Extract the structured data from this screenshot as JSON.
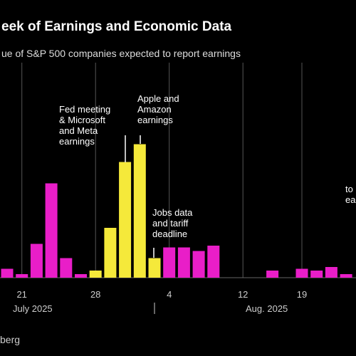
{
  "chart_data": {
    "type": "bar",
    "title": "eek of Earnings and Economic Data",
    "subtitle": "ue of S&P 500 companies expected to report earnings",
    "categories": [
      null,
      "21",
      null,
      null,
      null,
      null,
      "28",
      null,
      null,
      null,
      null,
      "4",
      null,
      null,
      null,
      null,
      "12",
      null,
      null,
      null,
      "19",
      null,
      null,
      null
    ],
    "values": [
      0.5,
      0.2,
      1.9,
      5.3,
      1.1,
      0.2,
      0.4,
      2.8,
      6.5,
      7.5,
      1.1,
      1.7,
      1.7,
      1.5,
      1.8,
      0,
      0,
      0,
      0.4,
      0,
      0.5,
      0.4,
      0.6,
      0.2
    ],
    "colors": [
      "#e91ec8",
      "#e91ec8",
      "#e91ec8",
      "#e91ec8",
      "#e91ec8",
      "#e91ec8",
      "#f5e93a",
      "#f5e93a",
      "#f5e93a",
      "#f5e93a",
      "#f5e93a",
      "#e91ec8",
      "#e91ec8",
      "#e91ec8",
      "#e91ec8",
      "#e91ec8",
      "#e91ec8",
      "#e91ec8",
      "#e91ec8",
      "#e91ec8",
      "#e91ec8",
      "#e91ec8",
      "#e91ec8",
      "#e91ec8"
    ],
    "ylim": [
      0,
      12
    ],
    "months": [
      "July 2025",
      "Aug. 2025"
    ],
    "annotations": [
      [
        "Fed meeting",
        "& Microsoft",
        "and Meta",
        "earnings"
      ],
      [
        "Apple and",
        "Amazon",
        "earnings"
      ],
      [
        "Jobs data",
        "and tariff",
        "deadline"
      ],
      [
        "to",
        "ear"
      ]
    ],
    "source": "berg"
  }
}
